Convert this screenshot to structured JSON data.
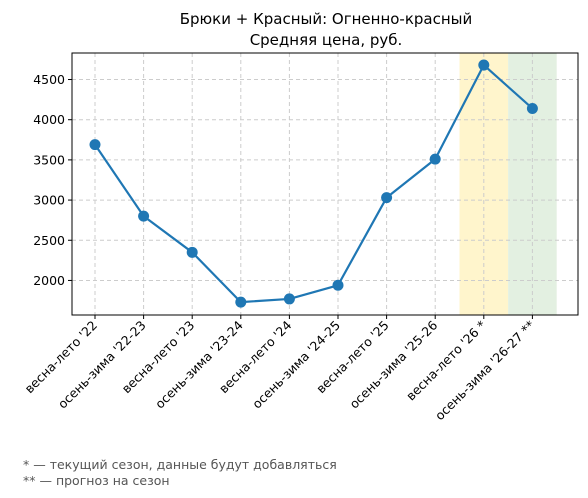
{
  "chart_data": {
    "type": "line",
    "title": "Брюки + Красный: Огненно-красный",
    "subtitle": "Средняя цена, руб.",
    "xlabel": "",
    "ylabel": "",
    "categories": [
      "весна-лето '22",
      "осень-зима '22-23",
      "весна-лето '23",
      "осень-зима '23-24",
      "весна-лето '24",
      "осень-зима '24-25",
      "весна-лето '25",
      "осень-зима '25-26",
      "весна-лето '26 *",
      "осень-зима '26-27 **"
    ],
    "series": [
      {
        "values": [
          3690,
          2800,
          2350,
          1730,
          1770,
          1940,
          3030,
          3510,
          4680,
          4140
        ],
        "color": "#1f77b4"
      }
    ],
    "ylim": [
      1570,
      4830
    ],
    "yticks": [
      2000,
      2500,
      3000,
      3500,
      4000,
      4500
    ],
    "grid": true,
    "highlights": [
      {
        "category": "весна-лето '26 *",
        "color": "#fff5cc",
        "meaning": "current season"
      },
      {
        "category": "осень-зима '26-27 **",
        "color": "#e3f0e1",
        "meaning": "forecast"
      }
    ]
  },
  "footnotes": {
    "current": "* — текущий сезон, данные будут добавляться",
    "forecast": "** — прогноз на сезон"
  }
}
